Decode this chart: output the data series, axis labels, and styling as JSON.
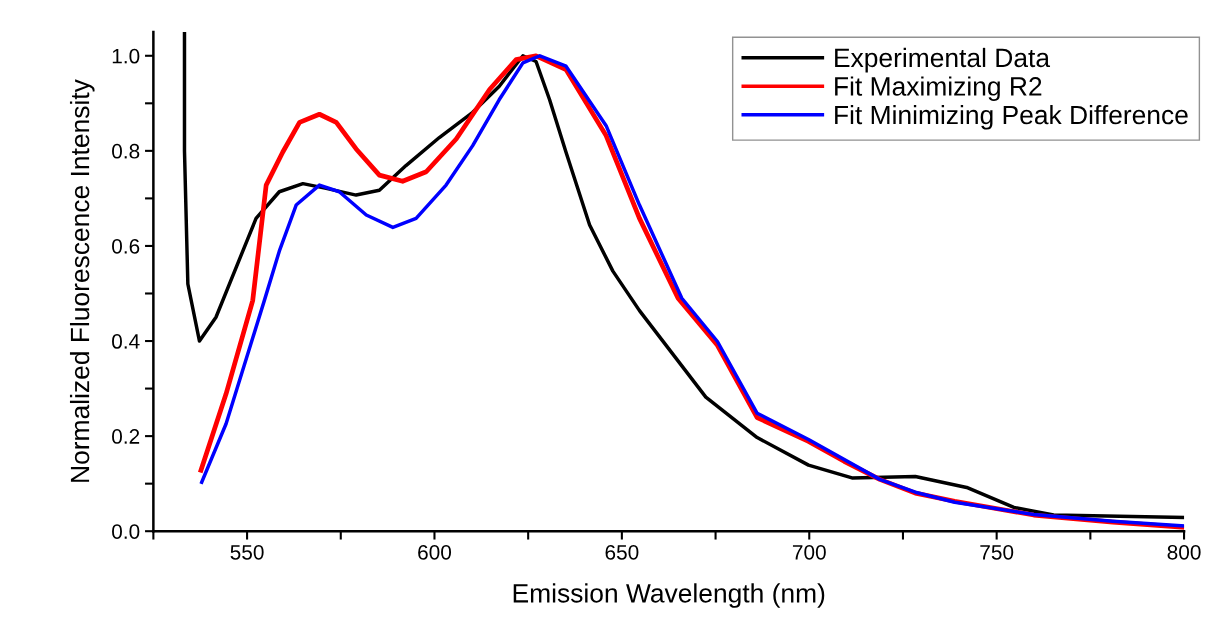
{
  "chart_data": {
    "type": "line",
    "xlabel": "Emission Wavelength (nm)",
    "ylabel": "Normalized Fluorescence Intensity",
    "xlim": [
      525,
      800
    ],
    "ylim": [
      0,
      1.05
    ],
    "xticks": [
      {
        "value": 525,
        "label": null
      },
      550,
      {
        "value": 575,
        "label": null
      },
      600,
      {
        "value": 625,
        "label": null
      },
      650,
      {
        "value": 675,
        "label": null
      },
      700,
      {
        "value": 725,
        "label": null
      },
      750,
      {
        "value": 775,
        "label": null
      },
      800
    ],
    "yticks": [
      {
        "value": 0,
        "label": "0.0"
      },
      {
        "value": 0.1,
        "label": null
      },
      0.2,
      {
        "value": 0.3,
        "label": null
      },
      0.4,
      {
        "value": 0.5,
        "label": null
      },
      0.6,
      {
        "value": 0.7,
        "label": null
      },
      0.8,
      {
        "value": 0.9,
        "label": null
      },
      {
        "value": 1,
        "label": "1.0"
      }
    ],
    "grid": false,
    "legend": "top right",
    "marker": "none",
    "line_style": "solid",
    "series": [
      {
        "name": "Experimental Data",
        "color": "#000000",
        "x": [
          533.3,
          533.3,
          534.2,
          537.3,
          541.7,
          552.4,
          558.6,
          564.9,
          571.1,
          579.1,
          585.3,
          592.4,
          601.3,
          610.2,
          617.3,
          623.6,
          627.1,
          630.7,
          635.1,
          641.4,
          647.6,
          654.7,
          672.4,
          686.1,
          699.8,
          711.4,
          728.3,
          742,
          754.6,
          765.2,
          800
        ],
        "values": [
          1.047,
          0.8,
          0.52,
          0.4,
          0.45,
          0.658,
          0.714,
          0.731,
          0.721,
          0.707,
          0.717,
          0.769,
          0.828,
          0.881,
          0.936,
          1.0,
          0.988,
          0.908,
          0.797,
          0.644,
          0.547,
          0.464,
          0.282,
          0.197,
          0.139,
          0.112,
          0.115,
          0.092,
          0.05,
          0.034,
          0.029
        ]
      },
      {
        "name": "Fit Maximizing R2",
        "color": "#ff0000",
        "x": [
          537.7,
          544.4,
          551.5,
          555.1,
          559.5,
          564,
          569.3,
          573.8,
          579.1,
          585.3,
          591.5,
          597.8,
          605.8,
          614.7,
          621.8,
          627.1,
          635.1,
          645.8,
          654.7,
          665,
          675.5,
          686.1,
          699.8,
          709.3,
          718.8,
          728.3,
          738.8,
          759.9,
          781,
          800
        ],
        "values": [
          0.128,
          0.289,
          0.485,
          0.728,
          0.797,
          0.86,
          0.877,
          0.86,
          0.804,
          0.749,
          0.736,
          0.756,
          0.825,
          0.929,
          0.992,
          1.0,
          0.971,
          0.832,
          0.658,
          0.49,
          0.391,
          0.239,
          0.189,
          0.147,
          0.109,
          0.08,
          0.063,
          0.034,
          0.019,
          0.008
        ]
      },
      {
        "name": "Fit Minimizing Peak Difference",
        "color": "#0000ff",
        "x": [
          537.9,
          544.4,
          554.6,
          558.6,
          563.1,
          569.3,
          574.6,
          581.8,
          588.9,
          595.1,
          603.1,
          610.2,
          617.3,
          623.6,
          628.1,
          635.1,
          645.8,
          654.7,
          666,
          675.5,
          686.1,
          699.8,
          718.8,
          728.3,
          738.8,
          759.9,
          781,
          800
        ],
        "values": [
          0.103,
          0.226,
          0.485,
          0.589,
          0.686,
          0.728,
          0.714,
          0.665,
          0.639,
          0.658,
          0.728,
          0.811,
          0.908,
          0.985,
          1.0,
          0.978,
          0.853,
          0.686,
          0.49,
          0.399,
          0.248,
          0.193,
          0.109,
          0.082,
          0.061,
          0.035,
          0.021,
          0.011
        ]
      }
    ]
  }
}
